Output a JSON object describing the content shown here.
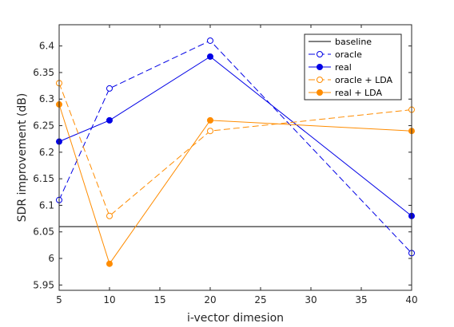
{
  "chart_data": {
    "type": "line",
    "xlabel": "i-vector dimesion",
    "ylabel": "SDR improvement (dB)",
    "xlim": [
      5,
      40
    ],
    "ylim": [
      5.94,
      6.44
    ],
    "xticks": [
      5,
      10,
      15,
      20,
      25,
      30,
      35,
      40
    ],
    "xtick_labels": [
      "5",
      "10",
      "15",
      "20",
      "25",
      "30",
      "35",
      "40"
    ],
    "yticks": [
      5.95,
      6,
      6.05,
      6.1,
      6.15,
      6.2,
      6.25,
      6.3,
      6.35,
      6.4
    ],
    "ytick_labels": [
      "5.95",
      "6",
      "6.05",
      "6.1",
      "6.15",
      "6.2",
      "6.25",
      "6.3",
      "6.35",
      "6.4"
    ],
    "grid": false,
    "legend_position": "top-right",
    "x": [
      5,
      10,
      20,
      40
    ],
    "series": [
      {
        "name": "baseline",
        "values": [
          6.06,
          6.06,
          6.06,
          6.06
        ],
        "color": "#000000",
        "style": "solid",
        "marker": "none"
      },
      {
        "name": "oracle",
        "values": [
          6.11,
          6.32,
          6.41,
          6.01
        ],
        "color": "#0000e6",
        "style": "dashed",
        "marker": "open-circle"
      },
      {
        "name": "real",
        "values": [
          6.22,
          6.26,
          6.38,
          6.08
        ],
        "color": "#0000e6",
        "style": "solid",
        "marker": "filled-circle"
      },
      {
        "name": "oracle + LDA",
        "values": [
          6.33,
          6.08,
          6.24,
          6.28
        ],
        "color": "#ff8c00",
        "style": "dashed",
        "marker": "open-circle"
      },
      {
        "name": "real + LDA",
        "values": [
          6.29,
          5.99,
          6.26,
          6.24
        ],
        "color": "#ff8c00",
        "style": "solid",
        "marker": "filled-circle"
      }
    ]
  }
}
